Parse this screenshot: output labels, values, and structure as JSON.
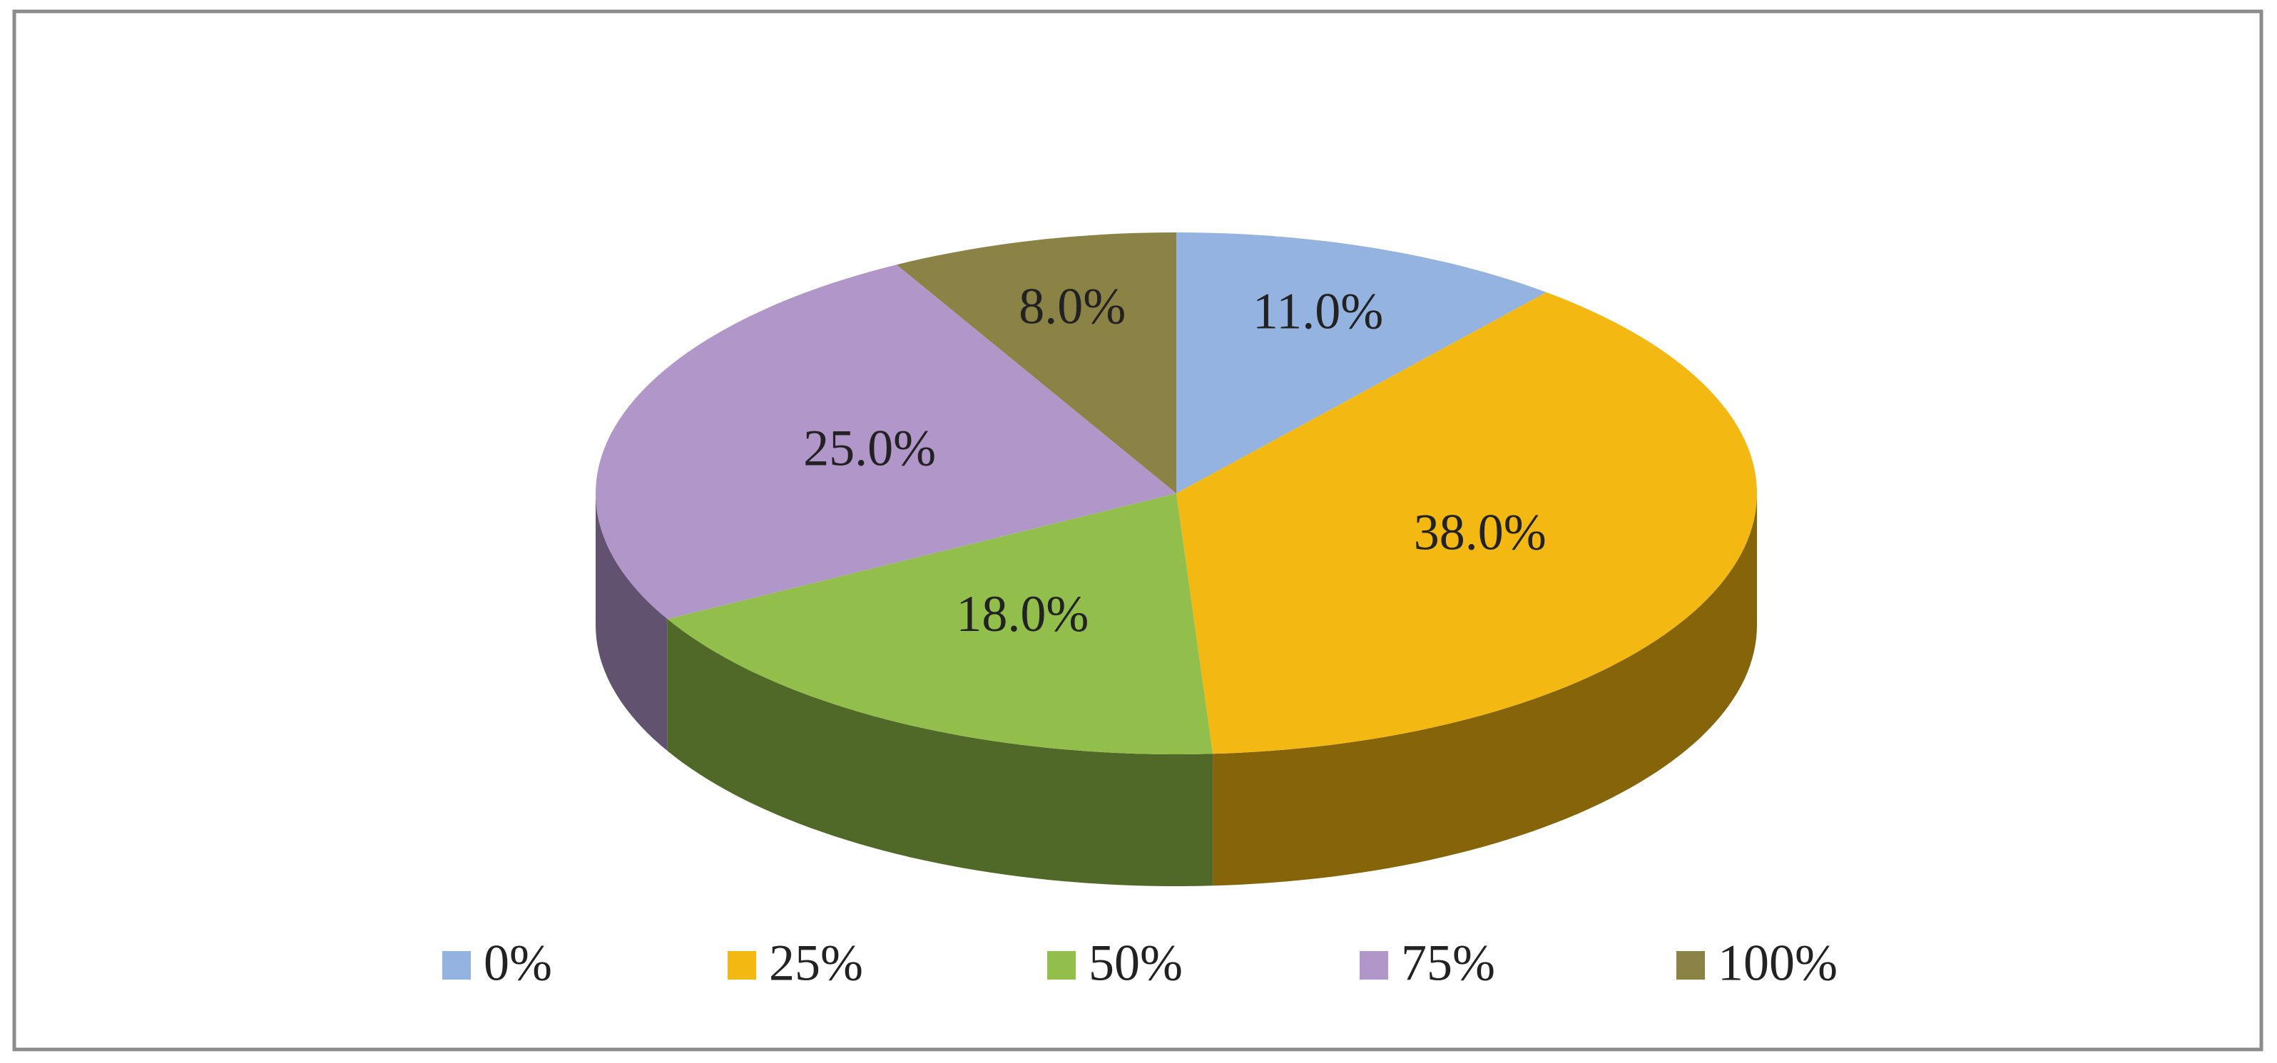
{
  "chart_data": {
    "type": "pie3d",
    "categories": [
      "0%",
      "25%",
      "50%",
      "75%",
      "100%"
    ],
    "values": [
      11,
      38,
      18,
      25,
      8
    ],
    "value_labels": [
      "11.0%",
      "38.0%",
      "18.0%",
      "25.0%",
      "8.0%"
    ],
    "colors": [
      "#95b3e0",
      "#f4b813",
      "#92bf4b",
      "#b196c9",
      "#8b8345"
    ],
    "legend": "bottom"
  }
}
